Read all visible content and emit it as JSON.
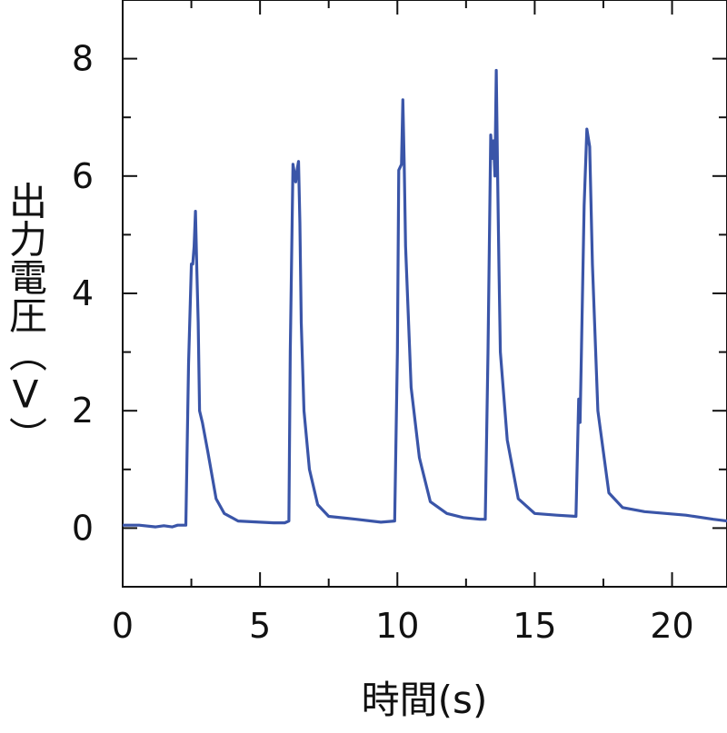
{
  "chart_data": {
    "type": "line",
    "xlabel": "時間(s)",
    "ylabel": "出力電圧（V）",
    "xlim": [
      0,
      22
    ],
    "ylim": [
      -1,
      9
    ],
    "xticks": [
      0,
      5,
      10,
      15,
      20
    ],
    "xtick_labels": [
      "0",
      "5",
      "10",
      "15",
      "20"
    ],
    "yticks": [
      0,
      2,
      4,
      6,
      8
    ],
    "ytick_labels": [
      "0",
      "2",
      "4",
      "6",
      "8"
    ],
    "grid": false,
    "line_color": "#3a55a8",
    "series": [
      {
        "x": [
          0,
          0.6,
          1.2,
          1.5,
          1.8,
          2.0,
          2.2,
          2.3,
          2.4,
          2.5,
          2.55,
          2.6,
          2.65,
          2.7,
          2.75,
          2.8,
          2.9,
          3.1,
          3.4,
          3.7,
          4.2,
          5.0,
          5.5,
          5.9,
          6.05,
          6.1,
          6.2,
          6.3,
          6.35,
          6.4,
          6.45,
          6.5,
          6.6,
          6.8,
          7.1,
          7.5,
          8.5,
          9.4,
          9.9,
          10.0,
          10.05,
          10.15,
          10.2,
          10.25,
          10.3,
          10.5,
          10.8,
          11.2,
          11.8,
          12.4,
          13.0,
          13.2,
          13.3,
          13.4,
          13.45,
          13.5,
          13.55,
          13.6,
          13.65,
          13.7,
          13.75,
          14.0,
          14.4,
          15.0,
          15.8,
          16.5,
          16.6,
          16.65,
          16.7,
          16.8,
          16.9,
          17.0,
          17.1,
          17.3,
          17.7,
          18.2,
          19.0,
          20.5,
          21.5,
          22.0
        ],
        "y": [
          0.05,
          0.05,
          0.02,
          0.04,
          0.02,
          0.05,
          0.05,
          0.05,
          2.8,
          4.5,
          4.5,
          4.8,
          5.4,
          4.4,
          3.5,
          2.0,
          1.8,
          1.3,
          0.5,
          0.25,
          0.12,
          0.1,
          0.09,
          0.09,
          0.12,
          3.0,
          6.2,
          5.9,
          6.1,
          6.25,
          5.2,
          3.5,
          2.0,
          1.0,
          0.4,
          0.2,
          0.15,
          0.1,
          0.12,
          3.0,
          6.1,
          6.2,
          7.3,
          6.2,
          4.8,
          2.4,
          1.2,
          0.45,
          0.25,
          0.18,
          0.15,
          0.15,
          3.0,
          6.7,
          6.3,
          6.6,
          6.0,
          7.8,
          6.0,
          4.4,
          3.0,
          1.5,
          0.5,
          0.25,
          0.22,
          0.2,
          2.2,
          1.8,
          3.0,
          5.5,
          6.8,
          6.5,
          4.5,
          2.0,
          0.6,
          0.35,
          0.28,
          0.22,
          0.15,
          0.12
        ]
      }
    ]
  }
}
